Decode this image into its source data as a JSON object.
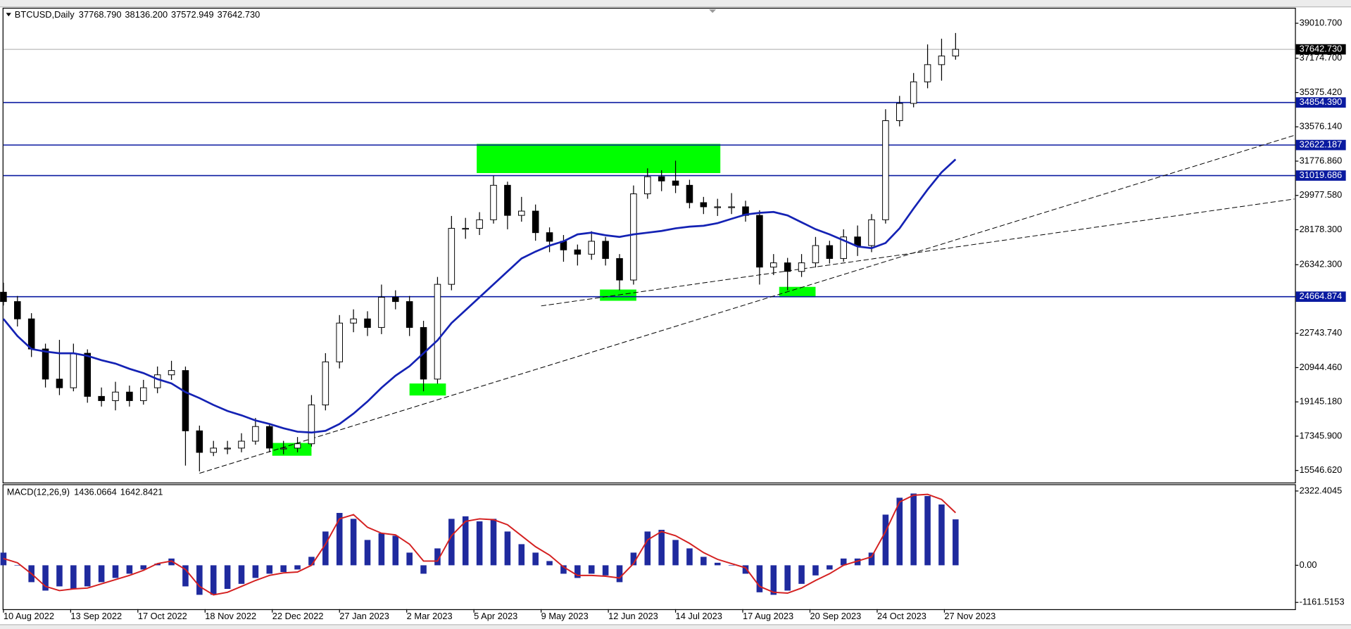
{
  "chart_data": [
    {
      "type": "candlestick",
      "title": "BTCUSD,Daily",
      "ohlc_labels": [
        "37768.790",
        "38136.200",
        "37572.949",
        "37642.730"
      ],
      "x": [
        0,
        5,
        10,
        15,
        20,
        25,
        30,
        35,
        40,
        45,
        50,
        55,
        60,
        65,
        70,
        75,
        80,
        85,
        90,
        95,
        100,
        105,
        110,
        115,
        120,
        125,
        130,
        135,
        140,
        145,
        150,
        155,
        160,
        165,
        170,
        175,
        180,
        185,
        190,
        195,
        200,
        205,
        210,
        215,
        220,
        225,
        230,
        235,
        240,
        245,
        250,
        255,
        260,
        265,
        270,
        275,
        280,
        285,
        290,
        295,
        300,
        305,
        310,
        315,
        320,
        325,
        330,
        335,
        340
      ],
      "open": [
        24900,
        24408,
        23500,
        21920,
        20340,
        19886,
        21696,
        19434,
        19210,
        19660,
        19210,
        19886,
        20565,
        20790,
        17626,
        16495,
        16720,
        16720,
        17084,
        17852,
        16720,
        16720,
        16948,
        18984,
        21245,
        23280,
        23500,
        23050,
        24634,
        24408,
        23050,
        20340,
        25312,
        28250,
        28250,
        28700,
        30510,
        28930,
        29155,
        28024,
        27572,
        27120,
        26894,
        27572,
        26668,
        25538,
        30060,
        30960,
        30736,
        30510,
        29600,
        29380,
        29380,
        29380,
        28930,
        26216,
        26440,
        25990,
        26440,
        27346,
        26668,
        27800,
        27346,
        28700,
        33900,
        34806,
        35936,
        36840,
        37292
      ],
      "high": [
        25400,
        24700,
        23800,
        22200,
        22400,
        22200,
        21900,
        19900,
        20200,
        20000,
        20300,
        21000,
        21300,
        21000,
        17900,
        17100,
        17100,
        17500,
        18300,
        18000,
        17100,
        17300,
        19500,
        21700,
        23700,
        24000,
        23900,
        25300,
        25000,
        24700,
        23400,
        25700,
        28900,
        28800,
        29100,
        31000,
        30700,
        29900,
        29500,
        28300,
        27900,
        27400,
        28100,
        27800,
        26900,
        30500,
        31400,
        31300,
        31800,
        30800,
        29900,
        29800,
        30100,
        29700,
        29200,
        26900,
        26700,
        26900,
        27800,
        27600,
        28200,
        28400,
        29000,
        34500,
        35200,
        36400,
        37900,
        38200,
        38500
      ],
      "low": [
        24200,
        23100,
        21500,
        19900,
        19500,
        19700,
        19100,
        18900,
        18700,
        18900,
        19000,
        19600,
        20300,
        15800,
        15500,
        16300,
        16400,
        16500,
        16900,
        16500,
        16400,
        16500,
        16800,
        18700,
        20900,
        22800,
        22600,
        22700,
        24000,
        22600,
        19700,
        20100,
        25000,
        27700,
        27900,
        28500,
        28200,
        28600,
        27600,
        27000,
        26500,
        26300,
        26600,
        26300,
        25000,
        25300,
        29800,
        30200,
        30100,
        29300,
        29000,
        28900,
        29000,
        28600,
        25300,
        25800,
        25000,
        25700,
        26200,
        26400,
        26500,
        26800,
        27000,
        28500,
        33600,
        34600,
        35600,
        36000,
        37100
      ],
      "close": [
        24408,
        23500,
        21920,
        20340,
        19886,
        21696,
        19434,
        19210,
        19660,
        19210,
        19886,
        20565,
        20790,
        17626,
        16495,
        16720,
        16720,
        17084,
        17852,
        16720,
        16720,
        16948,
        18984,
        21245,
        23280,
        23500,
        23050,
        24634,
        24408,
        23050,
        20340,
        25312,
        28250,
        28250,
        28700,
        30510,
        28930,
        29155,
        28024,
        27572,
        27120,
        26894,
        27572,
        26668,
        25538,
        30060,
        30960,
        30736,
        30510,
        29600,
        29380,
        29380,
        29380,
        28930,
        26216,
        26440,
        25990,
        26440,
        27346,
        26668,
        27800,
        27346,
        28700,
        33900,
        34806,
        35936,
        36840,
        37292,
        37643
      ],
      "candle_color": "#000000",
      "ma": {
        "color": "#1422b4",
        "values": [
          23500,
          22600,
          21920,
          21786,
          21696,
          21696,
          21560,
          21334,
          21154,
          20880,
          20655,
          20340,
          20112,
          19660,
          19344,
          18984,
          18666,
          18440,
          18170,
          17988,
          17762,
          17582,
          17536,
          17626,
          17988,
          18530,
          19164,
          19886,
          20520,
          21018,
          21696,
          22374,
          23280,
          23955,
          24634,
          25312,
          25990,
          26668,
          27030,
          27346,
          27572,
          27934,
          28024,
          27888,
          27800,
          27934,
          28024,
          28114,
          28250,
          28340,
          28386,
          28522,
          28750,
          28974,
          29064,
          29110,
          28930,
          28566,
          28204,
          27934,
          27618,
          27300,
          27210,
          27482,
          28250,
          29290,
          30285,
          31190,
          31870
        ]
      },
      "xlim": [
        0,
        461.2
      ],
      "ylim": [
        14914,
        39779
      ],
      "yticks": [
        {
          "value": 39010.7,
          "label": "39010.700"
        },
        {
          "value": 37174.7,
          "label": "37174.700"
        },
        {
          "value": 35375.42,
          "label": "35375.420"
        },
        {
          "value": 33576.14,
          "label": "33576.140"
        },
        {
          "value": 31776.86,
          "label": "31776.860"
        },
        {
          "value": 29977.58,
          "label": "29977.580"
        },
        {
          "value": 28178.3,
          "label": "28178.300"
        },
        {
          "value": 26342.3,
          "label": "26342.300"
        },
        {
          "value": 22743.74,
          "label": "22743.740"
        },
        {
          "value": 20944.46,
          "label": "20944.460"
        },
        {
          "value": 19145.18,
          "label": "19145.180"
        },
        {
          "value": 17345.9,
          "label": "17345.900"
        },
        {
          "value": 15546.62,
          "label": "15546.620"
        }
      ],
      "levels": [
        {
          "value": 34854.39,
          "label": "34854.390"
        },
        {
          "value": 32622.187,
          "label": "32622.187"
        },
        {
          "value": 31019.686,
          "label": "31019.686"
        },
        {
          "value": 24664.874,
          "label": "24664.874"
        }
      ],
      "level_color": "#0a1aa0",
      "last_price": {
        "value": 37642.73,
        "label": "37642.730"
      },
      "zones": [
        {
          "x": [
            169,
            256
          ],
          "y": [
            31150,
            32680
          ]
        },
        {
          "x": [
            145,
            158
          ],
          "y": [
            19480,
            20110
          ]
        },
        {
          "x": [
            96,
            110
          ],
          "y": [
            16320,
            16990
          ]
        },
        {
          "x": [
            213,
            226
          ],
          "y": [
            24450,
            25040
          ]
        },
        {
          "x": [
            277,
            290
          ],
          "y": [
            24630,
            25180
          ]
        }
      ],
      "zone_color": "#00ff00",
      "trendlines": [
        {
          "x": [
            70,
            461
          ],
          "y": [
            15400,
            33130
          ]
        },
        {
          "x": [
            192,
            461
          ],
          "y": [
            24180,
            29790
          ]
        }
      ]
    },
    {
      "type": "macd",
      "title": "MACD(12,26,9)",
      "value_labels": [
        "1436.0664",
        "1642.8421"
      ],
      "x": [
        0,
        5,
        10,
        15,
        20,
        25,
        30,
        35,
        40,
        45,
        50,
        55,
        60,
        65,
        70,
        75,
        80,
        85,
        90,
        95,
        100,
        105,
        110,
        115,
        120,
        125,
        130,
        135,
        140,
        145,
        150,
        155,
        160,
        165,
        170,
        175,
        180,
        185,
        190,
        195,
        200,
        205,
        210,
        215,
        220,
        225,
        230,
        235,
        240,
        245,
        250,
        255,
        260,
        265,
        270,
        275,
        280,
        285,
        290,
        295,
        300,
        305,
        310,
        315,
        320,
        325,
        330,
        335,
        340
      ],
      "histogram": {
        "color": "#1f2a9e",
        "values": [
          396,
          0,
          -528,
          -792,
          -660,
          -739,
          -660,
          -528,
          -396,
          -264,
          -132,
          53,
          211,
          -660,
          -924,
          -924,
          -739,
          -581,
          -396,
          -264,
          -211,
          -132,
          264,
          1056,
          1637,
          1452,
          792,
          1003,
          924,
          396,
          -264,
          528,
          1452,
          1531,
          1373,
          1452,
          1056,
          660,
          396,
          132,
          -264,
          -396,
          -264,
          -317,
          -528,
          396,
          1056,
          1109,
          792,
          528,
          264,
          79,
          0,
          -264,
          -845,
          -924,
          -792,
          -581,
          -317,
          -132,
          211,
          211,
          396,
          1584,
          2112,
          2244,
          2165,
          1901,
          1436
        ]
      },
      "signal": {
        "color": "#d42020",
        "values": [
          211,
          79,
          -264,
          -660,
          -792,
          -739,
          -713,
          -581,
          -449,
          -317,
          -158,
          53,
          132,
          -132,
          -660,
          -924,
          -845,
          -660,
          -475,
          -317,
          -238,
          -211,
          0,
          660,
          1452,
          1584,
          1188,
          1003,
          950,
          660,
          132,
          132,
          924,
          1373,
          1452,
          1426,
          1267,
          924,
          581,
          317,
          -53,
          -317,
          -317,
          -343,
          -396,
          53,
          792,
          1056,
          924,
          686,
          396,
          185,
          53,
          -79,
          -660,
          -845,
          -871,
          -713,
          -475,
          -264,
          0,
          132,
          264,
          1056,
          1980,
          2191,
          2218,
          2059,
          1643
        ]
      },
      "xlim": [
        0,
        461.2
      ],
      "ylim": [
        -1346,
        2507
      ],
      "yticks": [
        2322.4045,
        {
          "value": 0,
          "label": "0.00"
        },
        -1161.5153
      ],
      "xticks": [
        {
          "value": 0,
          "label": "10 Aug 2022"
        },
        {
          "value": 24,
          "label": "13 Sep 2022"
        },
        {
          "value": 48,
          "label": "17 Oct 2022"
        },
        {
          "value": 72,
          "label": "18 Nov 2022"
        },
        {
          "value": 96,
          "label": "22 Dec 2022"
        },
        {
          "value": 120,
          "label": "27 Jan 2023"
        },
        {
          "value": 144,
          "label": "2 Mar 2023"
        },
        {
          "value": 168,
          "label": "5 Apr 2023"
        },
        {
          "value": 192,
          "label": "9 May 2023"
        },
        {
          "value": 216,
          "label": "12 Jun 2023"
        },
        {
          "value": 240,
          "label": "14 Jul 2023"
        },
        {
          "value": 264,
          "label": "17 Aug 2023"
        },
        {
          "value": 288,
          "label": "20 Sep 2023"
        },
        {
          "value": 312,
          "label": "24 Oct 2023"
        },
        {
          "value": 336,
          "label": "27 Nov 2023"
        }
      ]
    }
  ]
}
